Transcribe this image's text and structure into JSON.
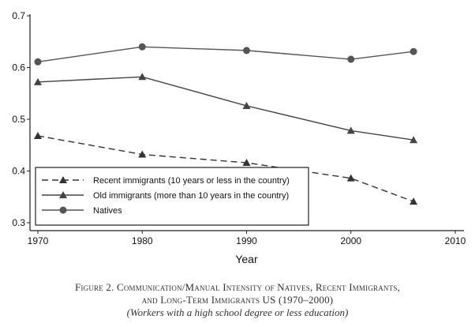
{
  "chart_data": {
    "type": "line",
    "xlabel": "Year",
    "ylabel": "",
    "x_ticks": [
      1970,
      1980,
      1990,
      2000,
      2010
    ],
    "y_ticks": [
      "0.3",
      "0.4",
      "0.5",
      "0.6",
      "0.7"
    ],
    "xlim": [
      1970,
      2010
    ],
    "ylim": [
      0.3,
      0.7
    ],
    "grid": false,
    "legend_position": "bottom-left",
    "series": [
      {
        "name": "Recent immigrants (10 years or less in the country)",
        "marker": "triangle",
        "line_style": "dashed",
        "color": "#333333",
        "x": [
          1970,
          1980,
          1990,
          2000,
          2006
        ],
        "values": [
          0.468,
          0.432,
          0.416,
          0.386,
          0.341
        ]
      },
      {
        "name": "Old immigrants (more than 10 years in the country)",
        "marker": "triangle",
        "line_style": "solid",
        "color": "#444444",
        "x": [
          1970,
          1980,
          1990,
          2000,
          2006
        ],
        "values": [
          0.572,
          0.582,
          0.526,
          0.478,
          0.46
        ]
      },
      {
        "name": "Natives",
        "marker": "circle",
        "line_style": "solid",
        "color": "#555555",
        "x": [
          1970,
          1980,
          1990,
          2000,
          2006
        ],
        "values": [
          0.611,
          0.64,
          0.633,
          0.616,
          0.631
        ]
      }
    ]
  },
  "caption": {
    "line1": "Figure 2. Communication/Manual Intensity of Natives, Recent Immigrants,",
    "line2": "and Long-Term Immigrants US (1970–2000)",
    "line3": "(Workers with a high school degree or less education)"
  }
}
